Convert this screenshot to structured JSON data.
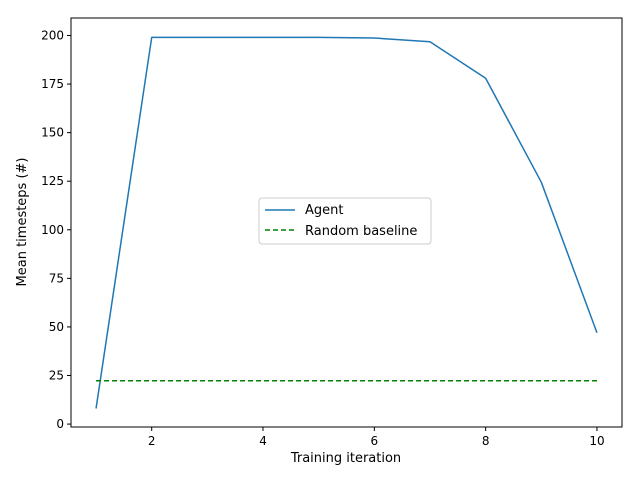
{
  "chart_data": {
    "type": "line",
    "title": "",
    "xlabel": "Training iteration",
    "ylabel": "Mean timesteps (#)",
    "xlim": [
      0.55,
      10.45
    ],
    "ylim": [
      -1.5,
      209
    ],
    "xticks": [
      2,
      4,
      6,
      8,
      10
    ],
    "yticks": [
      0,
      25,
      50,
      75,
      100,
      125,
      150,
      175,
      200
    ],
    "grid": false,
    "legend_position": "center",
    "series": [
      {
        "name": "Agent",
        "color": "#1f77b4",
        "style": "solid",
        "x": [
          1,
          2,
          3,
          4,
          5,
          6,
          7,
          8,
          9,
          10
        ],
        "y": [
          8,
          199,
          199,
          199,
          199,
          198.7,
          196.8,
          178,
          124.5,
          47
        ]
      },
      {
        "name": "Random baseline",
        "color": "#008000",
        "style": "dashed",
        "x": [
          1,
          10
        ],
        "y": [
          22.3,
          22.3
        ]
      }
    ]
  }
}
